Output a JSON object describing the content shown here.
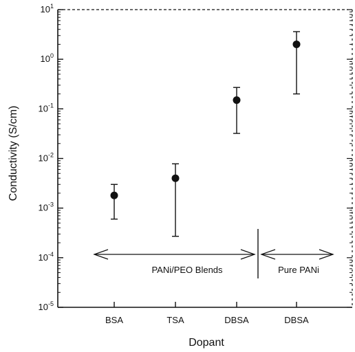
{
  "chart_data": {
    "type": "scatter",
    "title": "",
    "xlabel": "Dopant",
    "ylabel": "Conductivity (S/cm)",
    "y_scale": "log",
    "ylim": [
      1e-05,
      10
    ],
    "y_ticks": [
      {
        "value": 10,
        "base": "10",
        "exp": "1"
      },
      {
        "value": 1,
        "base": "10",
        "exp": "0"
      },
      {
        "value": 0.1,
        "base": "10",
        "exp": "-1"
      },
      {
        "value": 0.01,
        "base": "10",
        "exp": "-2"
      },
      {
        "value": 0.001,
        "base": "10",
        "exp": "-3"
      },
      {
        "value": 0.0001,
        "base": "10",
        "exp": "-4"
      },
      {
        "value": 1e-05,
        "base": "10",
        "exp": "-5"
      }
    ],
    "categories": [
      "BSA",
      "TSA",
      "DBSA",
      "DBSA"
    ],
    "points": [
      {
        "category": "BSA",
        "value": 0.0018,
        "err_low": 0.0006,
        "err_high": 0.003
      },
      {
        "category": "TSA",
        "value": 0.004,
        "err_low": 0.00027,
        "err_high": 0.0078
      },
      {
        "category": "DBSA",
        "value": 0.15,
        "err_low": 0.032,
        "err_high": 0.27
      },
      {
        "category": "DBSA",
        "value": 2.0,
        "err_low": 0.2,
        "err_high": 3.6
      }
    ],
    "annotations": [
      {
        "id": "blends",
        "text": "PANi/PEO Blends"
      },
      {
        "id": "pure",
        "text": "Pure PANi"
      }
    ],
    "grid": false,
    "legend": "none"
  }
}
